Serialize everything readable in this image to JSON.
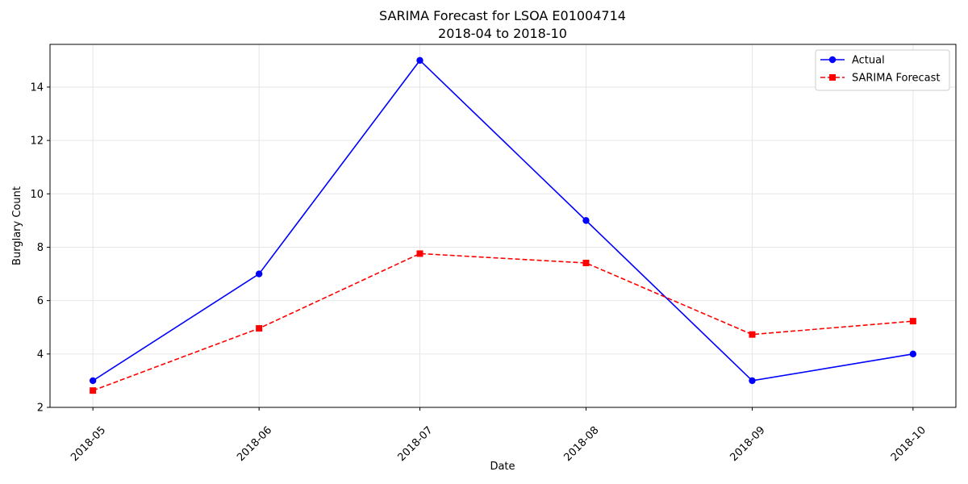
{
  "chart_data": {
    "type": "line",
    "title": "SARIMA Forecast for LSOA E01004714",
    "subtitle": "2018-04 to 2018-10",
    "xlabel": "Date",
    "ylabel": "Burglary Count",
    "x": [
      "2018-05",
      "2018-06",
      "2018-07",
      "2018-08",
      "2018-09",
      "2018-10"
    ],
    "xlim": [
      "2018-04-23",
      "2018-10-09"
    ],
    "ylim": [
      2,
      15.6
    ],
    "yticks": [
      2,
      4,
      6,
      8,
      10,
      12,
      14
    ],
    "grid": true,
    "legend_position": "top-right",
    "series": [
      {
        "name": "Actual",
        "values": [
          3,
          7,
          15,
          9,
          3,
          4
        ],
        "color": "#0000ff",
        "marker": "circle",
        "linestyle": "solid"
      },
      {
        "name": "SARIMA Forecast",
        "values": [
          2.63,
          4.96,
          7.76,
          7.41,
          4.73,
          5.23
        ],
        "color": "#ff0000",
        "marker": "square",
        "linestyle": "dashed"
      }
    ]
  }
}
